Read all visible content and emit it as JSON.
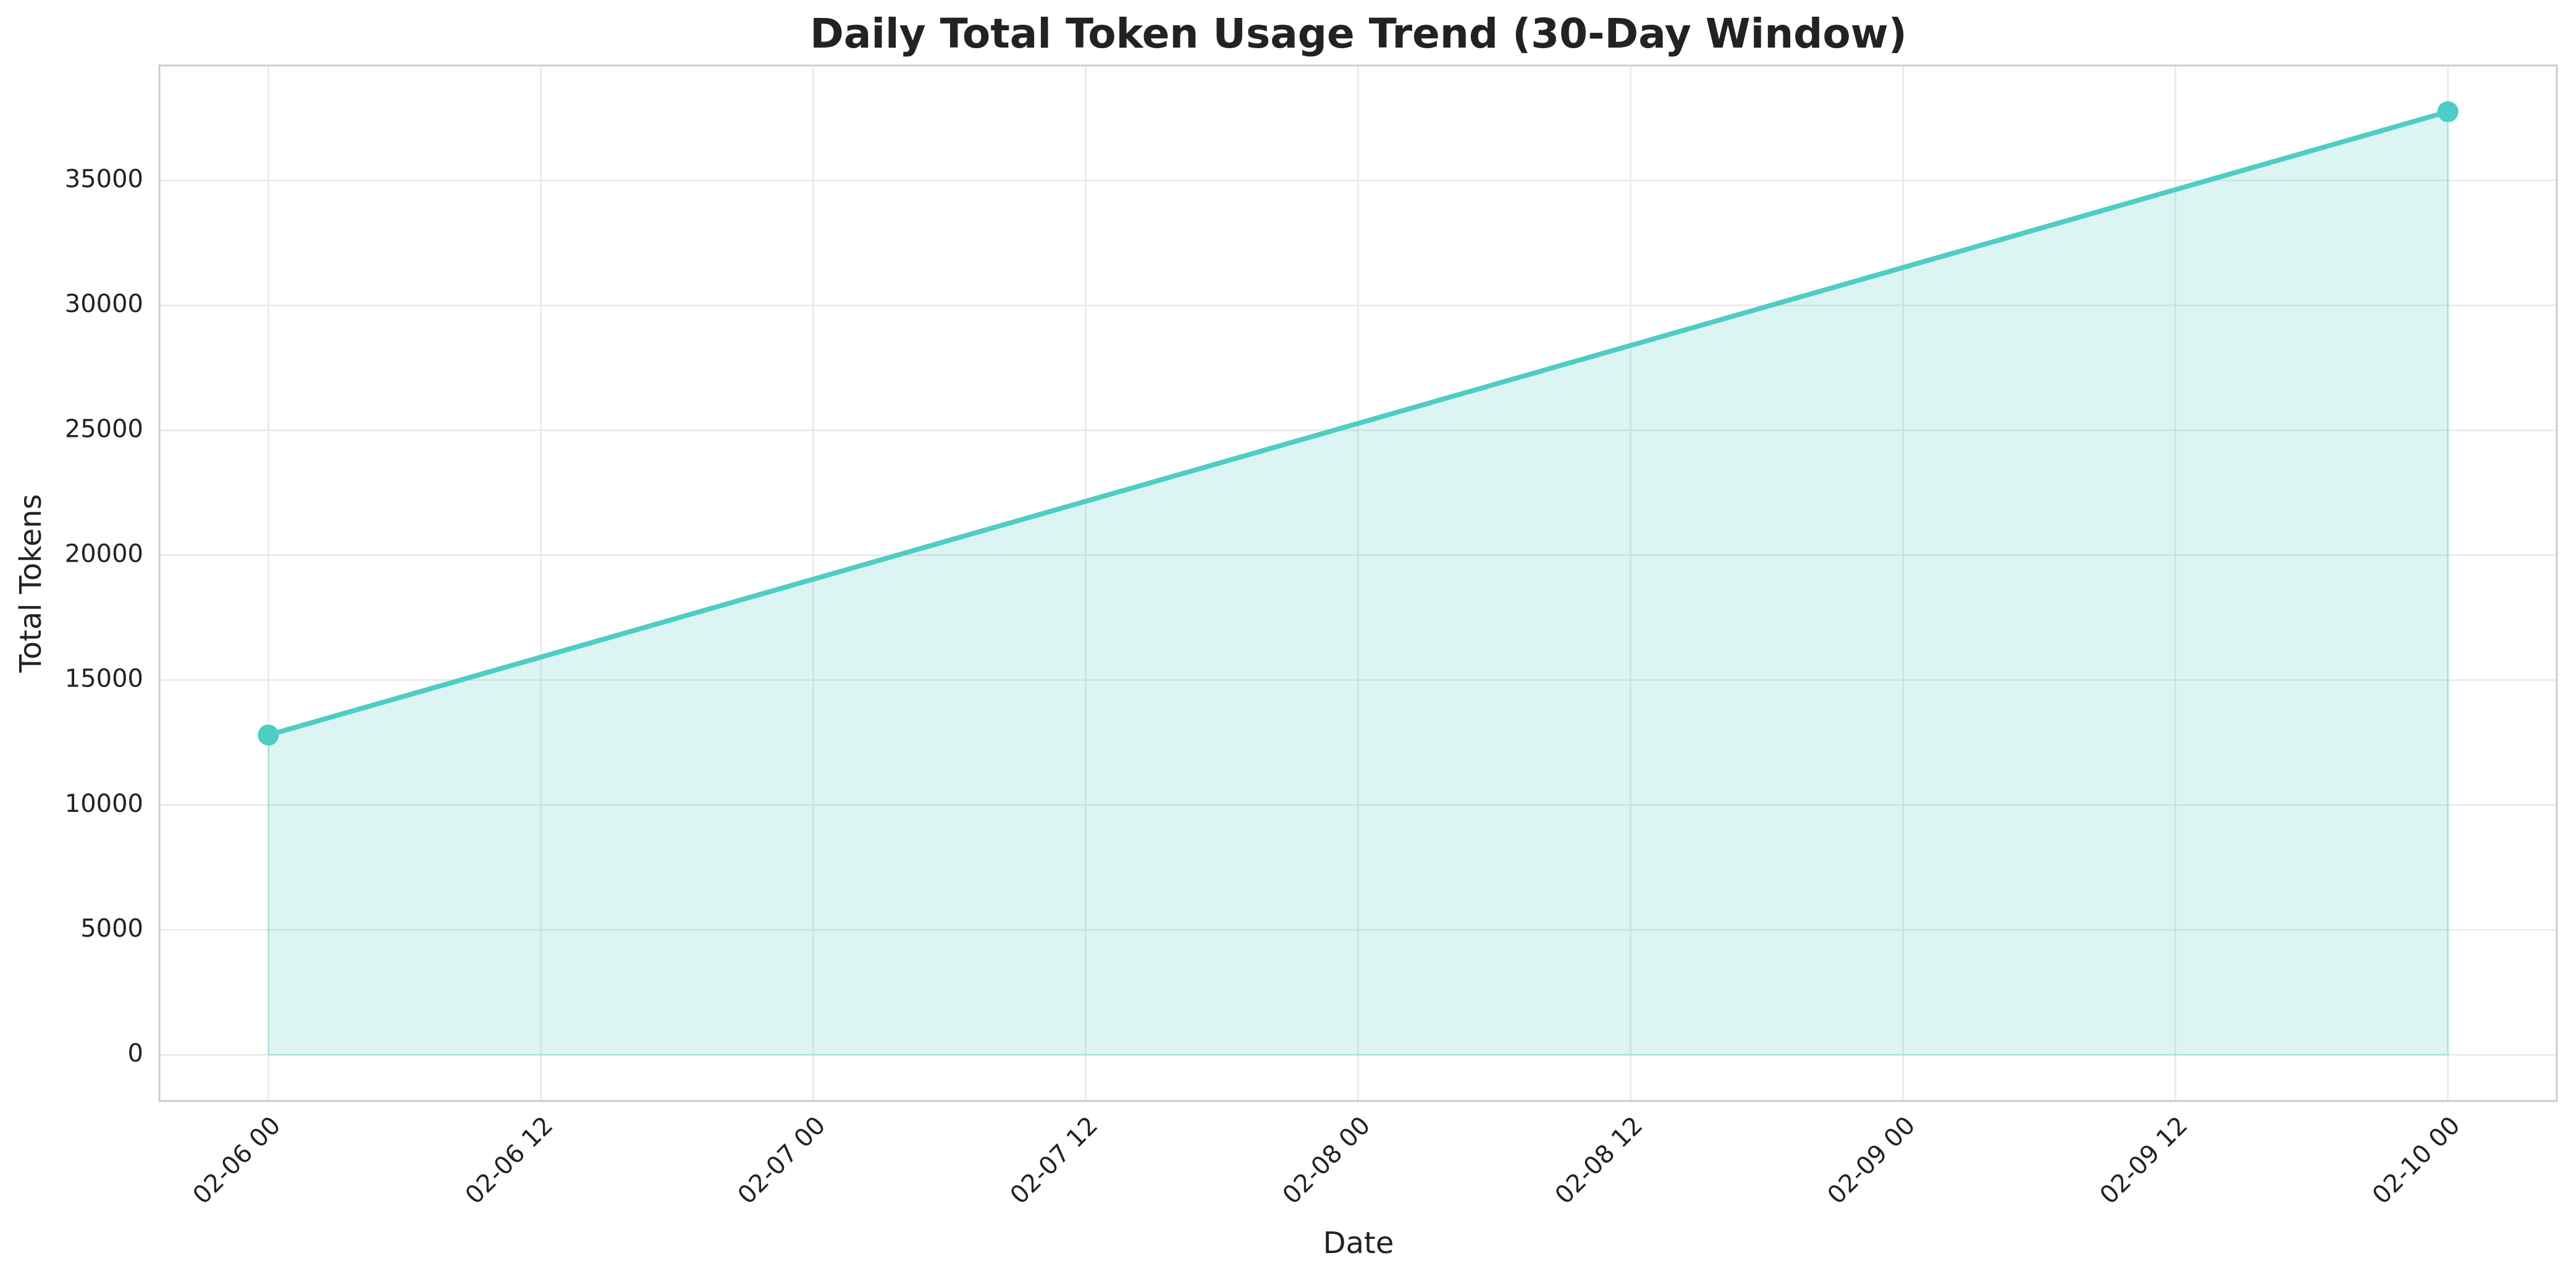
{
  "chart_data": {
    "type": "area-line",
    "title": "Daily Total Token Usage Trend (30-Day Window)",
    "x_label": "Date",
    "y_label": "Total Tokens",
    "x": [
      "02-06 00",
      "02-10 00"
    ],
    "series": [
      {
        "name": "Total Tokens",
        "color": "#4ecdc4",
        "values": [
          12800,
          37750
        ]
      }
    ],
    "ylim": [
      -1850,
      39600
    ],
    "yticks": [
      0,
      5000,
      10000,
      15000,
      20000,
      25000,
      30000,
      35000
    ],
    "xticks": [
      "02-06 00",
      "02-06 12",
      "02-07 00",
      "02-07 12",
      "02-08 00",
      "02-08 12",
      "02-09 00",
      "02-09 12",
      "02-10 00"
    ],
    "grid": true
  }
}
